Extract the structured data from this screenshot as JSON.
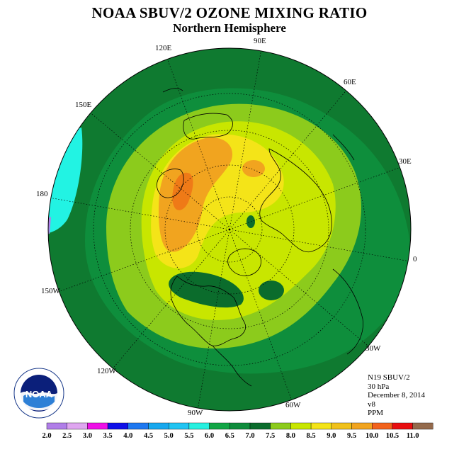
{
  "header": {
    "title": "NOAA SBUV/2 OZONE MIXING RATIO",
    "subtitle": "Northern Hemisphere"
  },
  "map": {
    "projection": "north-polar-stereographic",
    "longitude_labels": [
      "90E",
      "60E",
      "30E",
      "0",
      "30W",
      "60W",
      "90W",
      "120W",
      "150W",
      "180",
      "150E",
      "120E"
    ],
    "field_colors": {
      "outer": "#0f7a30",
      "mid": "#8ccb1c",
      "inner": "#c8e600",
      "high": "#f4e418",
      "peak1": "#f1a41f",
      "peak2": "#ef7a17",
      "low_blue": "#22f3e3"
    }
  },
  "info": {
    "satellite": "N19 SBUV/2",
    "level": "30 hPa",
    "date": "December 8, 2014",
    "version": "v8",
    "units": "PPM"
  },
  "colorbar": {
    "labels": [
      "2.0",
      "2.5",
      "3.0",
      "3.5",
      "4.0",
      "4.5",
      "5.0",
      "5.5",
      "6.0",
      "6.5",
      "7.0",
      "7.5",
      "8.0",
      "8.5",
      "9.0",
      "9.5",
      "10.0",
      "10.5",
      "11.0"
    ],
    "colors": [
      "#b07ee8",
      "#dfa6f0",
      "#ee10e6",
      "#1010e8",
      "#1e78f0",
      "#18a8ee",
      "#20c4f2",
      "#26f0e0",
      "#11a545",
      "#0f8c3c",
      "#0b6c2c",
      "#8ccb1c",
      "#c8e600",
      "#f4e418",
      "#f0c11a",
      "#f1a41f",
      "#f2621c",
      "#e80e10",
      "#946a4c"
    ]
  },
  "logo": {
    "text": "NOAA",
    "icon": "noaa-seal-icon"
  }
}
